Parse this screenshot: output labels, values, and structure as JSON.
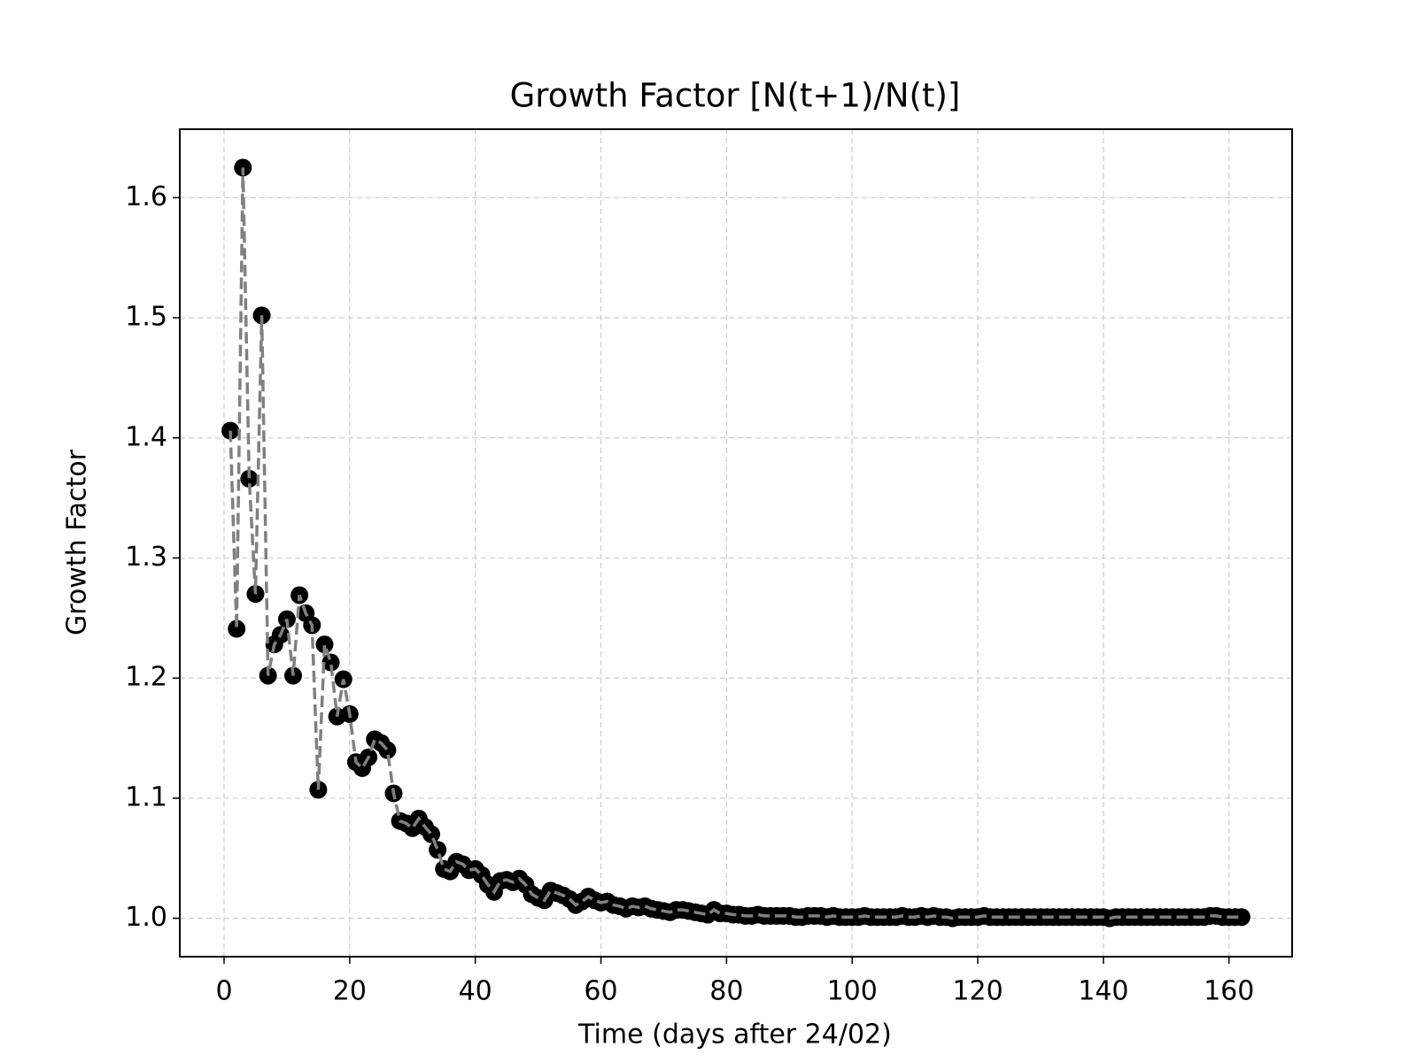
{
  "chart_data": {
    "type": "line",
    "title": "Growth Factor [N(t+1)/N(t)]",
    "x_label": "Time (days after 24/02)",
    "y_label": "Growth Factor",
    "x": [
      1,
      2,
      3,
      4,
      5,
      6,
      7,
      8,
      9,
      10,
      11,
      12,
      13,
      14,
      15,
      16,
      17,
      18,
      19,
      20,
      21,
      22,
      23,
      24,
      25,
      26,
      27,
      28,
      29,
      30,
      31,
      32,
      33,
      34,
      35,
      36,
      37,
      38,
      39,
      40,
      41,
      42,
      43,
      44,
      45,
      46,
      47,
      48,
      49,
      50,
      51,
      52,
      53,
      54,
      55,
      56,
      57,
      58,
      59,
      60,
      61,
      62,
      63,
      64,
      65,
      66,
      67,
      68,
      69,
      70,
      71,
      72,
      73,
      74,
      75,
      76,
      77,
      78,
      79,
      80,
      81,
      82,
      83,
      84,
      85,
      86,
      87,
      88,
      89,
      90,
      91,
      92,
      93,
      94,
      95,
      96,
      97,
      98,
      99,
      100,
      101,
      102,
      103,
      104,
      105,
      106,
      107,
      108,
      109,
      110,
      111,
      112,
      113,
      114,
      115,
      116,
      117,
      118,
      119,
      120,
      121,
      122,
      123,
      124,
      125,
      126,
      127,
      128,
      129,
      130,
      131,
      132,
      133,
      134,
      135,
      136,
      137,
      138,
      139,
      140,
      141,
      142,
      143,
      144,
      145,
      146,
      147,
      148,
      149,
      150,
      151,
      152,
      153,
      154,
      155,
      156,
      157,
      158,
      159,
      160,
      161,
      162
    ],
    "series": [
      {
        "color": "#000000",
        "line_color": "#808080",
        "linestyle": "dashed",
        "values": [
          1.406,
          1.241,
          1.625,
          1.366,
          1.27,
          1.502,
          1.202,
          1.228,
          1.236,
          1.249,
          1.202,
          1.269,
          1.254,
          1.244,
          1.107,
          1.228,
          1.213,
          1.168,
          1.199,
          1.17,
          1.13,
          1.125,
          1.134,
          1.149,
          1.146,
          1.14,
          1.104,
          1.081,
          1.079,
          1.075,
          1.083,
          1.076,
          1.07,
          1.057,
          1.041,
          1.039,
          1.047,
          1.045,
          1.04,
          1.041,
          1.036,
          1.028,
          1.022,
          1.031,
          1.032,
          1.03,
          1.033,
          1.028,
          1.02,
          1.017,
          1.015,
          1.023,
          1.021,
          1.019,
          1.016,
          1.011,
          1.014,
          1.018,
          1.015,
          1.013,
          1.014,
          1.011,
          1.01,
          1.008,
          1.01,
          1.009,
          1.01,
          1.008,
          1.007,
          1.006,
          1.005,
          1.007,
          1.007,
          1.006,
          1.005,
          1.004,
          1.003,
          1.007,
          1.004,
          1.004,
          1.003,
          1.003,
          1.002,
          1.002,
          1.003,
          1.002,
          1.002,
          1.002,
          1.002,
          1.002,
          1.001,
          1.001,
          1.002,
          1.002,
          1.002,
          1.001,
          1.002,
          1.001,
          1.001,
          1.001,
          1.001,
          1.002,
          1.001,
          1.001,
          1.001,
          1.001,
          1.001,
          1.002,
          1.001,
          1.001,
          1.002,
          1.001,
          1.002,
          1.001,
          1.001,
          1.0,
          1.001,
          1.001,
          1.001,
          1.001,
          1.002,
          1.001,
          1.001,
          1.001,
          1.001,
          1.001,
          1.001,
          1.001,
          1.001,
          1.001,
          1.001,
          1.001,
          1.001,
          1.001,
          1.001,
          1.001,
          1.001,
          1.001,
          1.001,
          1.001,
          1.0,
          1.001,
          1.001,
          1.001,
          1.001,
          1.001,
          1.001,
          1.001,
          1.001,
          1.001,
          1.001,
          1.001,
          1.001,
          1.001,
          1.001,
          1.001,
          1.002,
          1.002,
          1.001,
          1.001,
          1.001,
          1.001
        ]
      }
    ],
    "xlim": [
      -7.05,
      170.05
    ],
    "ylim": [
      0.968,
      1.657
    ],
    "xticks": [
      0,
      20,
      40,
      60,
      80,
      100,
      120,
      140,
      160
    ],
    "yticks": [
      {
        "value": 1,
        "label": "1.0"
      },
      1.1,
      1.2,
      1.3,
      1.4,
      1.5,
      1.6
    ],
    "grid": true
  }
}
